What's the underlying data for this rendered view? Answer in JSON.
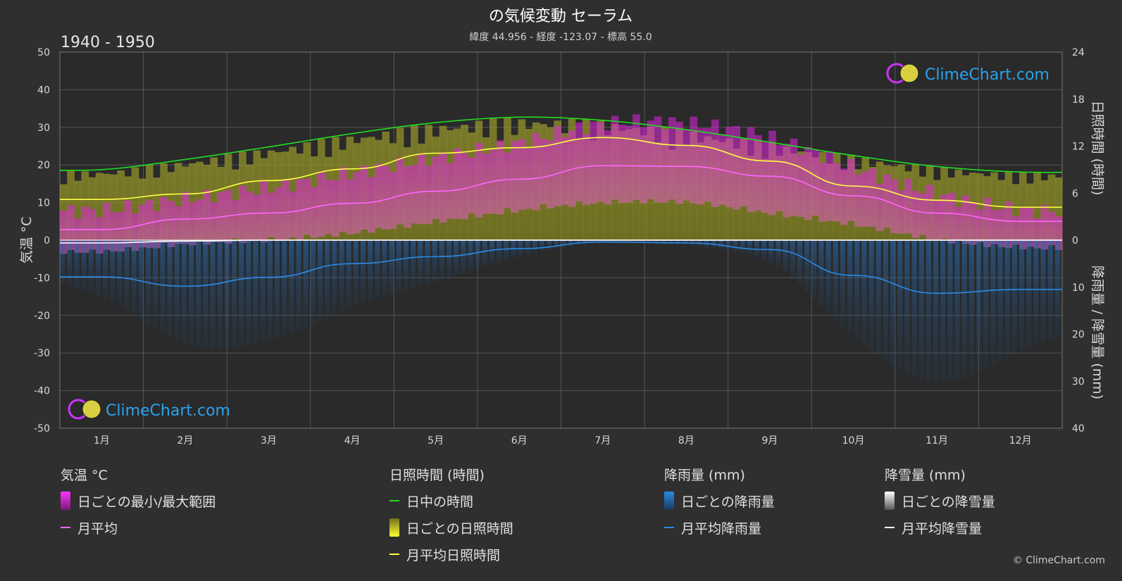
{
  "header": {
    "title": "の気候変動 セーラム",
    "subtitle": "緯度 44.956 - 経度 -123.07 - 標高 55.0",
    "period": "1940 - 1950"
  },
  "brand": {
    "name": "ClimeChart.com",
    "copyright": "© ClimeChart.com"
  },
  "colors": {
    "background": "#2f2f2f",
    "daylight": "#22dd22",
    "sunshine_avg": "#ffff44",
    "temp_avg": "#ff66ff",
    "rain_avg": "#2a8be8",
    "snow_avg": "#ffffff",
    "temp_range": "#e020e0",
    "sunshine_daily": "#b8b830",
    "rain_daily": "#1f6fb8",
    "brand": "#2aa3ef"
  },
  "legend": {
    "temperature": {
      "title": "気温 °C",
      "range": "日ごとの最小/最大範囲",
      "avg": "月平均"
    },
    "sunshine": {
      "title": "日照時間 (時間)",
      "daylight": "日中の時間",
      "daily": "日ごとの日照時間",
      "avg": "月平均日照時間"
    },
    "rain": {
      "title": "降雨量 (mm)",
      "daily": "日ごとの降雨量",
      "avg": "月平均降雨量"
    },
    "snow": {
      "title": "降雪量 (mm)",
      "daily": "日ごとの降雪量",
      "avg": "月平均降雪量"
    }
  },
  "chart_data": {
    "type": "line",
    "categories": [
      "1月",
      "2月",
      "3月",
      "4月",
      "5月",
      "6月",
      "7月",
      "8月",
      "9月",
      "10月",
      "11月",
      "12月"
    ],
    "axes": {
      "left": {
        "label": "気温 °C",
        "range": [
          -50,
          50
        ],
        "ticks": [
          50,
          40,
          30,
          20,
          10,
          0,
          -10,
          -20,
          -30,
          -40,
          -50
        ]
      },
      "right_top": {
        "label": "日照時間 (時間)",
        "range": [
          0,
          24
        ],
        "ticks": [
          24,
          18,
          12,
          6,
          0
        ]
      },
      "right_bottom": {
        "label": "降雨量 / 降雪量 (mm)",
        "range": [
          0,
          40
        ],
        "ticks": [
          10,
          20,
          30,
          40
        ]
      }
    },
    "grid": true,
    "series": [
      {
        "name": "日中の時間",
        "axis": "sunshine",
        "values": [
          9.0,
          10.3,
          11.9,
          13.6,
          15.0,
          15.7,
          15.3,
          14.1,
          12.5,
          10.8,
          9.4,
          8.7
        ]
      },
      {
        "name": "月平均日照時間",
        "axis": "sunshine",
        "values": [
          5.2,
          5.9,
          7.6,
          9.1,
          11.1,
          11.8,
          13.1,
          12.1,
          10.1,
          6.9,
          5.1,
          4.2
        ]
      },
      {
        "name": "月平均",
        "axis": "temperature",
        "values": [
          2.8,
          5.6,
          7.2,
          9.8,
          13.0,
          16.2,
          19.8,
          19.6,
          17.0,
          11.8,
          7.2,
          5.0
        ]
      },
      {
        "name": "月平均降雨量",
        "axis": "rain",
        "values": [
          7.8,
          9.8,
          7.9,
          5.0,
          3.5,
          1.8,
          0.4,
          0.6,
          2.0,
          7.5,
          11.3,
          10.5
        ]
      },
      {
        "name": "月平均降雪量",
        "axis": "snow",
        "values": [
          0.6,
          0.2,
          0.0,
          0.0,
          0.0,
          0.0,
          0.0,
          0.0,
          0.0,
          0.0,
          0.0,
          0.0
        ]
      }
    ],
    "bands": {
      "temp_range_min": [
        -2,
        0,
        1,
        3,
        6,
        9,
        11,
        11,
        8,
        5,
        1,
        -1
      ],
      "temp_range_max": [
        8,
        11,
        14,
        18,
        22,
        26,
        31,
        31,
        27,
        19,
        12,
        8
      ]
    }
  }
}
